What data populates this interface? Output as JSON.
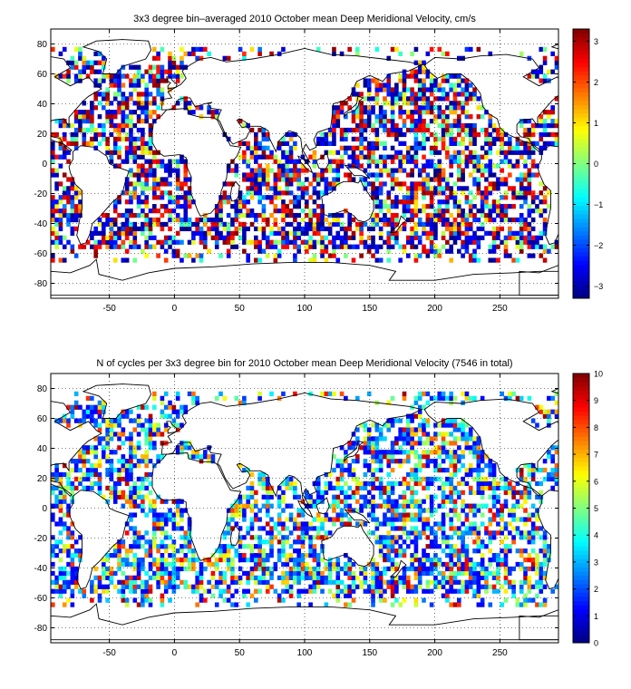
{
  "chart_data": [
    {
      "type": "heatmap",
      "title": "3x3 degree bin–averaged 2010 October mean Deep Meridional Velocity, cm/s",
      "xlabel": "",
      "ylabel": "",
      "xlim": [
        -95,
        295
      ],
      "ylim": [
        -90,
        90
      ],
      "x_ticks": [
        -50,
        0,
        50,
        100,
        150,
        200,
        250
      ],
      "y_ticks": [
        -80,
        -60,
        -40,
        -20,
        0,
        20,
        40,
        60,
        80
      ],
      "grid": true,
      "bin_size_deg": 3,
      "colorbar": {
        "min": -3.3,
        "max": 3.3,
        "ticks": [
          -3,
          -2,
          -1,
          0,
          1,
          2,
          3
        ],
        "colormap": "jet"
      },
      "seed": 7,
      "value_range": [
        -3.3,
        3.3
      ]
    },
    {
      "type": "heatmap",
      "title": "N of cycles per 3x3 degree bin for 2010 October mean Deep Meridional Velocity (7546 in total)",
      "xlabel": "",
      "ylabel": "",
      "xlim": [
        -95,
        295
      ],
      "ylim": [
        -90,
        90
      ],
      "x_ticks": [
        -50,
        0,
        50,
        100,
        150,
        200,
        250
      ],
      "y_ticks": [
        -80,
        -60,
        -40,
        -20,
        0,
        20,
        40,
        60,
        80
      ],
      "grid": true,
      "bin_size_deg": 3,
      "total_cycles": 7546,
      "colorbar": {
        "min": 0,
        "max": 10,
        "ticks": [
          0,
          1,
          2,
          3,
          4,
          5,
          6,
          7,
          8,
          9,
          10
        ],
        "colormap": "jet"
      },
      "seed": 7,
      "value_range": [
        0,
        10
      ]
    }
  ]
}
